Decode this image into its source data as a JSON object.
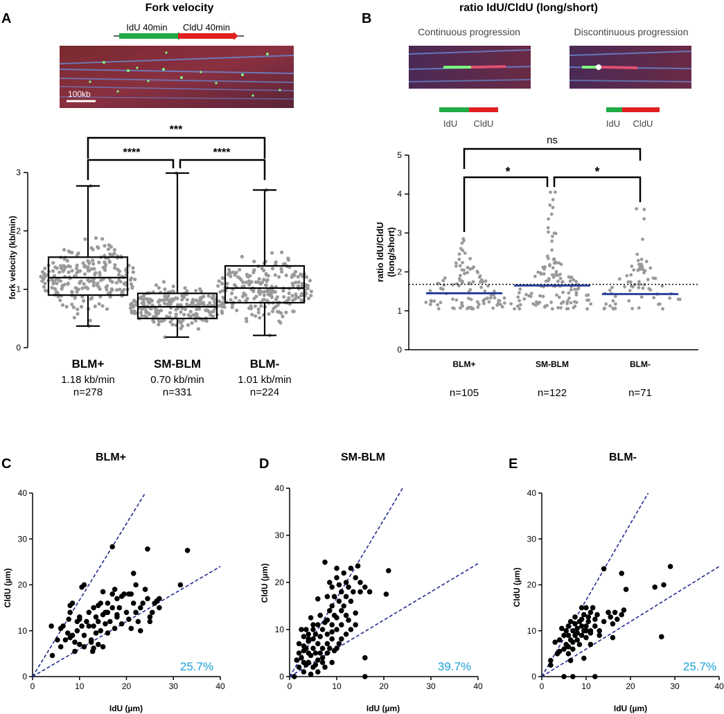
{
  "panel_a": {
    "letter": "A",
    "title": "Fork velocity",
    "schematic": {
      "idu": "IdU 40min",
      "cldu": "CldU 40min"
    },
    "scalebar": "100kb",
    "ylabel": "fork velocity (kb/min)",
    "yticks": [
      "0",
      "1",
      "2",
      "3"
    ],
    "groups": [
      {
        "name": "BLM+",
        "mean": "1.18 kb/min",
        "n": "n=278"
      },
      {
        "name": "SM-BLM",
        "mean": "0.70 kb/min",
        "n": "n=331"
      },
      {
        "name": "BLM-",
        "mean": "1.01 kb/min",
        "n": "n=224"
      }
    ],
    "sig": {
      "top": "***",
      "left": "****",
      "right": "****"
    }
  },
  "panel_b": {
    "letter": "B",
    "title": "ratio IdU/CldU (long/short)",
    "cont": "Continuous progression",
    "discont": "Discontinuous progression",
    "label_idu": "IdU",
    "label_cldu": "CldU",
    "ylabel1": "ratio IdU/CldU",
    "ylabel2": "(long/short)",
    "yticks": [
      "0",
      "1",
      "2",
      "3",
      "4",
      "5"
    ],
    "groups": [
      {
        "name": "BLM+",
        "n": "n=105"
      },
      {
        "name": "SM-BLM",
        "n": "n=122"
      },
      {
        "name": "BLM-",
        "n": "n=71"
      }
    ],
    "sig": {
      "top": "ns",
      "left": "*",
      "right": "*"
    }
  },
  "scatter_panels": [
    {
      "letter": "C",
      "title": "BLM+",
      "pct": "25.7%",
      "xlabel": "IdU (µm)",
      "ylabel": "CldU (µm)"
    },
    {
      "letter": "D",
      "title": "SM-BLM",
      "pct": "39.7%",
      "xlabel": "IdU (µm)",
      "ylabel": "CldU (µm)"
    },
    {
      "letter": "E",
      "title": "BLM-",
      "pct": "25.7%",
      "xlabel": "IdU (µm)",
      "ylabel": "CldU (µm)"
    }
  ],
  "scatter_ticks": [
    "0",
    "10",
    "20",
    "30",
    "40"
  ],
  "colors": {
    "idu": "#22aa44",
    "cldu": "#e02020",
    "mean": "#2b3f9e",
    "dots": "#9a9a9a",
    "pct": "#1aa0d8",
    "dashed": "#1f2a8a"
  },
  "chart_data": [
    {
      "type": "box",
      "title": "Fork velocity",
      "ylabel": "fork velocity (kb/min)",
      "ylim": [
        0,
        3
      ],
      "categories": [
        "BLM+",
        "SM-BLM",
        "BLM-"
      ],
      "boxes": [
        {
          "min": 0.37,
          "q1": 0.9,
          "median": 1.2,
          "q3": 1.55,
          "max": 2.77,
          "n": 278
        },
        {
          "min": 0.18,
          "q1": 0.5,
          "median": 0.7,
          "q3": 0.93,
          "max": 2.99,
          "n": 331
        },
        {
          "min": 0.21,
          "q1": 0.77,
          "median": 1.02,
          "q3": 1.4,
          "max": 2.7,
          "n": 224
        }
      ]
    },
    {
      "type": "scatter",
      "title": "ratio IdU/CldU (long/short)",
      "ylabel": "ratio IdU/CldU (long/short)",
      "ylim": [
        0,
        5
      ],
      "categories": [
        "BLM+",
        "SM-BLM",
        "BLM-"
      ],
      "means": [
        1.45,
        1.65,
        1.43
      ],
      "maxima": [
        2.85,
        4.05,
        3.62
      ],
      "threshold": 1.68,
      "n": [
        105,
        122,
        71
      ]
    },
    {
      "type": "scatter",
      "title": "BLM+",
      "xlabel": "IdU (µm)",
      "ylabel": "CldU (µm)",
      "xlim": [
        0,
        40
      ],
      "ylim": [
        0,
        40
      ],
      "reference_slopes": [
        1.667,
        0.6
      ],
      "percent_outside": "25.7%",
      "points": [
        [
          4.2,
          4.6
        ],
        [
          4,
          11
        ],
        [
          5.3,
          8
        ],
        [
          6,
          6.5
        ],
        [
          6,
          10.5
        ],
        [
          6.5,
          11
        ],
        [
          7,
          8
        ],
        [
          7.5,
          9.5
        ],
        [
          7.7,
          12.5
        ],
        [
          8,
          14
        ],
        [
          8,
          15.5
        ],
        [
          8.5,
          16
        ],
        [
          8.5,
          9
        ],
        [
          9,
          5.5
        ],
        [
          9.5,
          10
        ],
        [
          9.5,
          12
        ],
        [
          10,
          7
        ],
        [
          10,
          13
        ],
        [
          10.5,
          11
        ],
        [
          10.5,
          19.5
        ],
        [
          11,
          20
        ],
        [
          11,
          9
        ],
        [
          11.5,
          12
        ],
        [
          12,
          14
        ],
        [
          12.5,
          7.5
        ],
        [
          12.5,
          8
        ],
        [
          12.8,
          5.5
        ],
        [
          13,
          11
        ],
        [
          13,
          6.2
        ],
        [
          13.5,
          13
        ],
        [
          13.5,
          9.5
        ],
        [
          14,
          15.5
        ],
        [
          14,
          12
        ],
        [
          14,
          7
        ],
        [
          14.5,
          16
        ],
        [
          14.5,
          10
        ],
        [
          15,
          18.5
        ],
        [
          15,
          13.5
        ],
        [
          15,
          6.5
        ],
        [
          15.5,
          11.5
        ],
        [
          15.5,
          14
        ],
        [
          16,
          16
        ],
        [
          16,
          9.5
        ],
        [
          16.5,
          12
        ],
        [
          17,
          28.3
        ],
        [
          17,
          15
        ],
        [
          17,
          18
        ],
        [
          17.5,
          19
        ],
        [
          17.5,
          10.5
        ],
        [
          18,
          13
        ],
        [
          18,
          17
        ],
        [
          18.5,
          15
        ],
        [
          19,
          17.5
        ],
        [
          19,
          11.5
        ],
        [
          19.5,
          18
        ],
        [
          20,
          14
        ],
        [
          20.5,
          18
        ],
        [
          20.5,
          12.5
        ],
        [
          21,
          10.5
        ],
        [
          21,
          18
        ],
        [
          21.5,
          16
        ],
        [
          21.5,
          22.5
        ],
        [
          22,
          20
        ],
        [
          22,
          14
        ],
        [
          22.5,
          12
        ],
        [
          23,
          15
        ],
        [
          23,
          10
        ],
        [
          23.5,
          16
        ],
        [
          24,
          19
        ],
        [
          24.5,
          17
        ],
        [
          24.5,
          27.8
        ],
        [
          25,
          12
        ],
        [
          25,
          13
        ],
        [
          25.5,
          14
        ],
        [
          26,
          16
        ],
        [
          26.5,
          16.5
        ],
        [
          27,
          15
        ],
        [
          27,
          17
        ],
        [
          31.5,
          20
        ],
        [
          33,
          27.5
        ],
        [
          10,
          12.5
        ],
        [
          12,
          11
        ],
        [
          16,
          14
        ],
        [
          18,
          13.5
        ],
        [
          8,
          8.5
        ],
        [
          9,
          7.5
        ],
        [
          11,
          6.5
        ],
        [
          13,
          15
        ]
      ]
    },
    {
      "type": "scatter",
      "title": "SM-BLM",
      "xlabel": "IdU (µm)",
      "ylabel": "CldU (µm)",
      "xlim": [
        0,
        40
      ],
      "ylim": [
        0,
        40
      ],
      "reference_slopes": [
        1.667,
        0.6
      ],
      "percent_outside": "39.7%",
      "points": [
        [
          1,
          0
        ],
        [
          1.5,
          3.5
        ],
        [
          2,
          2
        ],
        [
          2,
          7
        ],
        [
          2.5,
          4
        ],
        [
          2.5,
          10
        ],
        [
          3,
          1
        ],
        [
          3,
          5.5
        ],
        [
          3,
          8.5
        ],
        [
          3.5,
          2.5
        ],
        [
          3.5,
          6
        ],
        [
          3.5,
          10
        ],
        [
          4,
          3
        ],
        [
          4,
          7.5
        ],
        [
          4,
          9
        ],
        [
          4.5,
          4.5
        ],
        [
          4.5,
          0.5
        ],
        [
          4.5,
          12.5
        ],
        [
          5,
          6
        ],
        [
          5,
          8
        ],
        [
          5,
          10
        ],
        [
          5.5,
          2.5
        ],
        [
          5.5,
          5
        ],
        [
          5.5,
          9
        ],
        [
          6,
          3.5
        ],
        [
          6,
          7
        ],
        [
          6,
          11
        ],
        [
          6,
          16.5
        ],
        [
          6.5,
          5
        ],
        [
          6.5,
          8.5
        ],
        [
          6.5,
          13
        ],
        [
          7,
          3
        ],
        [
          7,
          6
        ],
        [
          7,
          10
        ],
        [
          7.5,
          11.5
        ],
        [
          7.5,
          2
        ],
        [
          7.5,
          24.3
        ],
        [
          8,
          7
        ],
        [
          8,
          9
        ],
        [
          8,
          12
        ],
        [
          8,
          17
        ],
        [
          8.5,
          6
        ],
        [
          8.5,
          14
        ],
        [
          8.5,
          20
        ],
        [
          9,
          3
        ],
        [
          9,
          8
        ],
        [
          9,
          11
        ],
        [
          9,
          15
        ],
        [
          9,
          19
        ],
        [
          9.5,
          5.5
        ],
        [
          9.5,
          13
        ],
        [
          9.5,
          17
        ],
        [
          10,
          10
        ],
        [
          10,
          21
        ],
        [
          10,
          23
        ],
        [
          10,
          12.5
        ],
        [
          10.5,
          7
        ],
        [
          10.5,
          16
        ],
        [
          10.5,
          19.5
        ],
        [
          11,
          11
        ],
        [
          11,
          14
        ],
        [
          11,
          18
        ],
        [
          11.5,
          15
        ],
        [
          11.5,
          22
        ],
        [
          12,
          13
        ],
        [
          12,
          17
        ],
        [
          12,
          20
        ],
        [
          12.5,
          19
        ],
        [
          12.5,
          12
        ],
        [
          13,
          16
        ],
        [
          13,
          23
        ],
        [
          13.5,
          18
        ],
        [
          14,
          13.5
        ],
        [
          14,
          21
        ],
        [
          14.5,
          23.5
        ],
        [
          15,
          20
        ],
        [
          15,
          18
        ],
        [
          16,
          0
        ],
        [
          16,
          19
        ],
        [
          16,
          4
        ],
        [
          17,
          18
        ],
        [
          20.5,
          17.5
        ],
        [
          21,
          22.5
        ],
        [
          3,
          3
        ],
        [
          4,
          5
        ],
        [
          5,
          2
        ],
        [
          6,
          1
        ],
        [
          7,
          4
        ],
        [
          8,
          5
        ],
        [
          9,
          9.5
        ],
        [
          10,
          6
        ],
        [
          11,
          8
        ],
        [
          12,
          9
        ],
        [
          13,
          10
        ],
        [
          14,
          11
        ],
        [
          2,
          5
        ],
        [
          3,
          6.5
        ],
        [
          4,
          8
        ],
        [
          5,
          11
        ]
      ]
    },
    {
      "type": "scatter",
      "title": "BLM-",
      "xlabel": "IdU (µm)",
      "ylabel": "CldU (µm)",
      "xlim": [
        0,
        40
      ],
      "ylim": [
        0,
        40
      ],
      "reference_slopes": [
        1.667,
        0.6
      ],
      "percent_outside": "25.7%",
      "points": [
        [
          2,
          3.5
        ],
        [
          2,
          2.5
        ],
        [
          3,
          7.5
        ],
        [
          3.5,
          5
        ],
        [
          4,
          5.5
        ],
        [
          4,
          8
        ],
        [
          4.5,
          10.5
        ],
        [
          5,
          6
        ],
        [
          5,
          9
        ],
        [
          5,
          0
        ],
        [
          5.5,
          7
        ],
        [
          5.5,
          10
        ],
        [
          6,
          5
        ],
        [
          6,
          9
        ],
        [
          6,
          11
        ],
        [
          6.5,
          3.5
        ],
        [
          6.5,
          8
        ],
        [
          6.5,
          12
        ],
        [
          7,
          6
        ],
        [
          7,
          10
        ],
        [
          7,
          0
        ],
        [
          7.5,
          9
        ],
        [
          7.5,
          11.5
        ],
        [
          7.5,
          13
        ],
        [
          8,
          8
        ],
        [
          8,
          10.5
        ],
        [
          8.5,
          12
        ],
        [
          8.5,
          7
        ],
        [
          9,
          9
        ],
        [
          9,
          11
        ],
        [
          9,
          15
        ],
        [
          9.5,
          4
        ],
        [
          9.5,
          10
        ],
        [
          9.5,
          13.5
        ],
        [
          10,
          11
        ],
        [
          10,
          15
        ],
        [
          10,
          8.5
        ],
        [
          10.5,
          13
        ],
        [
          10.5,
          12
        ],
        [
          11,
          14
        ],
        [
          11,
          9.5
        ],
        [
          11,
          7
        ],
        [
          11.5,
          15
        ],
        [
          12,
          11
        ],
        [
          12,
          0
        ],
        [
          12.5,
          13.5
        ],
        [
          13,
          10
        ],
        [
          14,
          23.5
        ],
        [
          14,
          12
        ],
        [
          15,
          14
        ],
        [
          15.5,
          13
        ],
        [
          16,
          8.5
        ],
        [
          16,
          11.5
        ],
        [
          16.5,
          14
        ],
        [
          17,
          12.5
        ],
        [
          18,
          22.5
        ],
        [
          18,
          13.5
        ],
        [
          18.5,
          14.5
        ],
        [
          19,
          19
        ],
        [
          25.5,
          19.5
        ],
        [
          27,
          8.7
        ],
        [
          27.5,
          20
        ],
        [
          29,
          24
        ],
        [
          8,
          9.5
        ],
        [
          9,
          12.5
        ],
        [
          11,
          10
        ],
        [
          12,
          12.5
        ],
        [
          13,
          9
        ],
        [
          7,
          7.5
        ],
        [
          6,
          6.5
        ],
        [
          10,
          10
        ]
      ]
    }
  ]
}
